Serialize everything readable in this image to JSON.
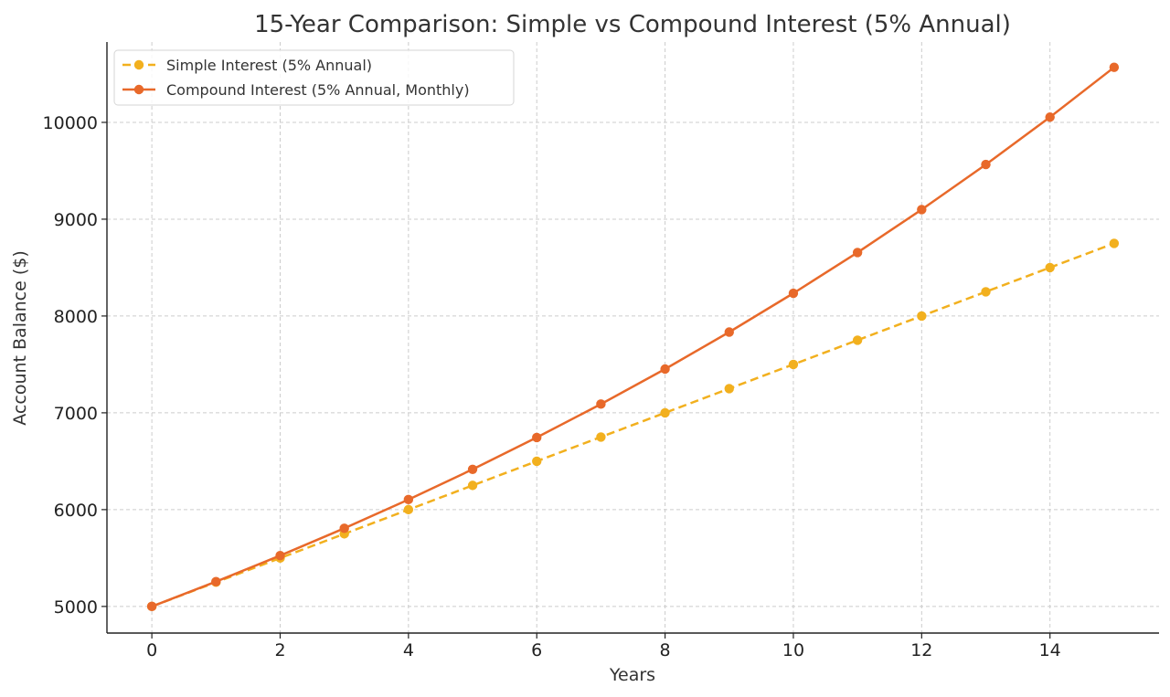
{
  "chart_data": {
    "type": "line",
    "title": "15-Year Comparison: Simple vs Compound Interest (5% Annual)",
    "xlabel": "Years",
    "ylabel": "Account Balance ($)",
    "xlim": [
      -0.7,
      15.7
    ],
    "ylim": [
      4725,
      10830
    ],
    "xticks": [
      0,
      2,
      4,
      6,
      8,
      10,
      12,
      14
    ],
    "yticks": [
      5000,
      6000,
      7000,
      8000,
      9000,
      10000
    ],
    "grid": true,
    "legend_position": "top-left",
    "x": [
      0,
      1,
      2,
      3,
      4,
      5,
      6,
      7,
      8,
      9,
      10,
      11,
      12,
      13,
      14,
      15
    ],
    "series": [
      {
        "name": "Simple Interest (5% Annual)",
        "color": "#F2B01E",
        "style": "dashed",
        "values": [
          5000,
          5250,
          5500,
          5750,
          6000,
          6250,
          6500,
          6750,
          7000,
          7250,
          7500,
          7750,
          8000,
          8250,
          8500,
          8750
        ]
      },
      {
        "name": "Compound Interest (5% Annual, Monthly)",
        "color": "#E8692A",
        "style": "solid",
        "values": [
          5000,
          5256,
          5525,
          5807,
          6104,
          6416,
          6745,
          7090,
          7452,
          7834,
          8235,
          8656,
          9099,
          9565,
          10054,
          10569
        ]
      }
    ]
  }
}
